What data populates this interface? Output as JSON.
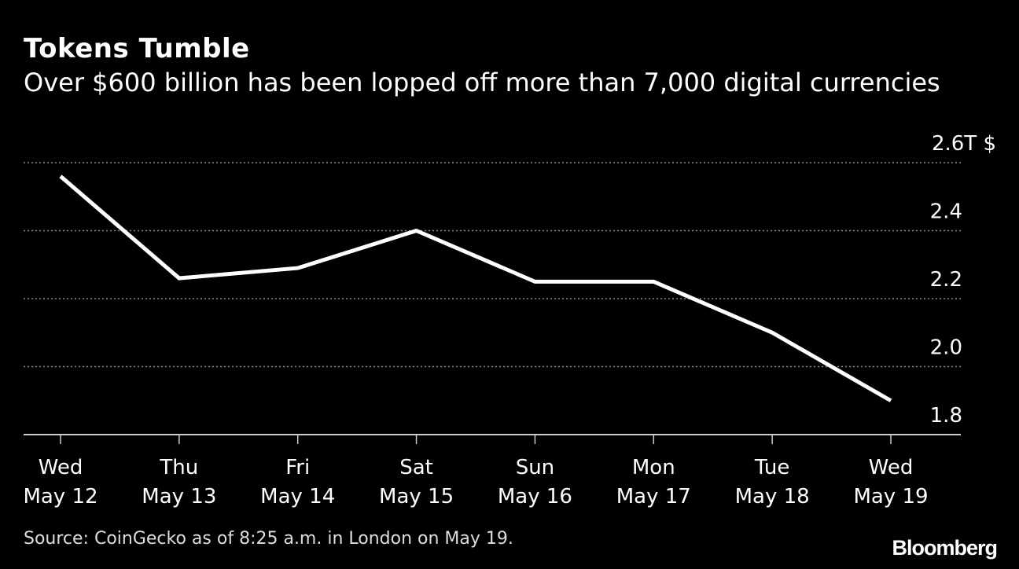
{
  "chart_data": {
    "type": "line",
    "title": "Tokens Tumble",
    "subtitle": "Over $600 billion has been lopped off more than 7,000 digital currencies",
    "categories": [
      [
        "Wed",
        "May 12"
      ],
      [
        "Thu",
        "May 13"
      ],
      [
        "Fri",
        "May 14"
      ],
      [
        "Sat",
        "May 15"
      ],
      [
        "Sun",
        "May 16"
      ],
      [
        "Mon",
        "May 17"
      ],
      [
        "Tue",
        "May 18"
      ],
      [
        "Wed",
        "May 19"
      ]
    ],
    "values": [
      2.56,
      2.26,
      2.29,
      2.4,
      2.25,
      2.25,
      2.1,
      1.9
    ],
    "ylim": [
      1.8,
      2.6
    ],
    "yticks": [
      1.8,
      2.0,
      2.2,
      2.4,
      2.6
    ],
    "ytick_labels": [
      "1.8",
      "2.0",
      "2.2",
      "2.4",
      "2.6T $"
    ],
    "y_axis_position": "right",
    "grid": true,
    "line_color": "#ffffff",
    "background": "#000000",
    "source": "Source: CoinGecko as of 8:25 a.m. in London on May 19.",
    "logo": "Bloomberg"
  }
}
